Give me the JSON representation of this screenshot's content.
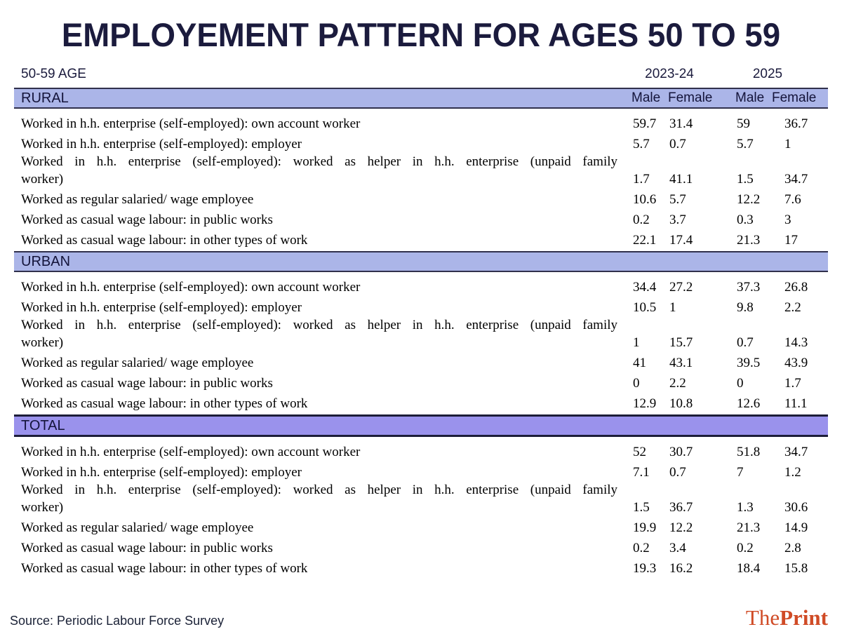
{
  "page": {
    "title": "EMPLOYEMENT PATTERN FOR AGES 50 TO 59",
    "source": "Source: Periodic Labour Force Survey",
    "brand": {
      "the": "The",
      "print": "Print"
    }
  },
  "colors": {
    "title_navy": "#1b1b3d",
    "band_rural_urban": "#abb5e8",
    "band_total": "#9a92ec",
    "band_border": "#30304c",
    "brand_orange": "#d04b26"
  },
  "chart_data": {
    "type": "table",
    "title": "EMPLOYEMENT PATTERN FOR AGES 50 TO 59",
    "row_header": "50-59 AGE",
    "year_headers": [
      "2023-24",
      "2025"
    ],
    "gender_headers": [
      "Male",
      "Female",
      "Male",
      "Female"
    ],
    "sections": [
      {
        "name": "RURAL",
        "band_color": "#abb5e8",
        "rows": [
          {
            "label": "Worked in h.h. enterprise (self-employed): own account worker",
            "values": [
              59.7,
              31.4,
              59,
              36.7
            ]
          },
          {
            "label": "Worked in h.h. enterprise (self-employed): employer",
            "values": [
              5.7,
              0.7,
              5.7,
              1
            ]
          },
          {
            "label": "Worked in h.h. enterprise (self-employed): worked as helper in h.h. enterprise (unpaid family",
            "label2": "worker)",
            "values": [
              1.7,
              41.1,
              1.5,
              34.7
            ]
          },
          {
            "label": "Worked as regular salaried/ wage employee",
            "values": [
              10.6,
              5.7,
              12.2,
              7.6
            ]
          },
          {
            "label": "Worked as casual wage labour: in public works",
            "values": [
              0.2,
              3.7,
              0.3,
              3
            ]
          },
          {
            "label": "Worked as casual wage labour: in other types of work",
            "values": [
              22.1,
              17.4,
              21.3,
              17
            ]
          }
        ]
      },
      {
        "name": "URBAN",
        "band_color": "#abb5e8",
        "rows": [
          {
            "label": "Worked in h.h. enterprise (self-employed): own account worker",
            "values": [
              34.4,
              27.2,
              37.3,
              26.8
            ]
          },
          {
            "label": "Worked in h.h. enterprise (self-employed): employer",
            "values": [
              10.5,
              1,
              9.8,
              2.2
            ]
          },
          {
            "label": "Worked in h.h. enterprise (self-employed): worked as helper in h.h. enterprise (unpaid family",
            "label2": "worker)",
            "values": [
              1,
              15.7,
              0.7,
              14.3
            ]
          },
          {
            "label": "Worked as regular salaried/ wage employee",
            "values": [
              41,
              43.1,
              39.5,
              43.9
            ]
          },
          {
            "label": "Worked as casual wage labour: in public works",
            "values": [
              0,
              2.2,
              0,
              1.7
            ]
          },
          {
            "label": "Worked as casual wage labour: in other types of work",
            "values": [
              12.9,
              10.8,
              12.6,
              11.1
            ]
          }
        ]
      },
      {
        "name": "TOTAL",
        "band_color": "#9a92ec",
        "rows": [
          {
            "label": "Worked in h.h. enterprise (self-employed): own account worker",
            "values": [
              52,
              30.7,
              51.8,
              34.7
            ]
          },
          {
            "label": "Worked in h.h. enterprise (self-employed): employer",
            "values": [
              7.1,
              0.7,
              7,
              1.2
            ]
          },
          {
            "label": "Worked in h.h. enterprise (self-employed): worked as helper in h.h. enterprise (unpaid family",
            "label2": "worker)",
            "values": [
              1.5,
              36.7,
              1.3,
              30.6
            ]
          },
          {
            "label": "Worked as regular salaried/ wage employee",
            "values": [
              19.9,
              12.2,
              21.3,
              14.9
            ]
          },
          {
            "label": "Worked as casual wage labour: in public works",
            "values": [
              0.2,
              3.4,
              0.2,
              2.8
            ]
          },
          {
            "label": "Worked as casual wage labour: in other types of work",
            "values": [
              19.3,
              16.2,
              18.4,
              15.8
            ]
          }
        ]
      }
    ]
  }
}
